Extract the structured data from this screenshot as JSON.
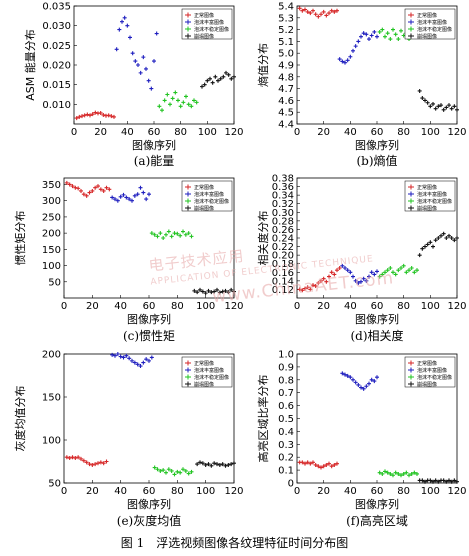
{
  "figure_title": "图 1　浮选视频图像各纹理特征时间分布图",
  "watermark": {
    "line1": "电子技术应用",
    "line2": "APPLICATION OF ELECTRONIC TECHNIQUE",
    "line3": "www.ChinaAET.com"
  },
  "colors": {
    "normal": "#d62728",
    "foam_abundant": "#1f1fbf",
    "foam_unstable": "#22c422",
    "collapse": "#111111"
  },
  "chart_data": [
    {
      "type": "scatter",
      "caption": "(a)能量",
      "xlabel": "图像序列",
      "ylabel": "ASM 能量分布",
      "xlim": [
        0,
        120
      ],
      "ylim": [
        0.005,
        0.035
      ],
      "xticks": [
        0,
        20,
        40,
        60,
        80,
        100,
        120
      ],
      "yticks": [
        0.01,
        0.015,
        0.02,
        0.025,
        0.03,
        0.035
      ],
      "yticklabels": [
        "0.010",
        "0.015",
        "0.020",
        "0.025",
        "0.030",
        "0.035"
      ],
      "legend": [
        "正常图像",
        "泡沫丰富图像",
        "泡沫不稳定图像",
        "崩塌图像"
      ],
      "series": [
        {
          "x": [
            2,
            4,
            6,
            8,
            10,
            12,
            14,
            16,
            18,
            20,
            22,
            24,
            26,
            28,
            30
          ],
          "y": [
            0.0065,
            0.0068,
            0.007,
            0.0072,
            0.0074,
            0.0072,
            0.0075,
            0.0079,
            0.0077,
            0.0078,
            0.0073,
            0.0071,
            0.0072,
            0.007,
            0.0068
          ]
        },
        {
          "x": [
            32,
            34,
            36,
            38,
            40,
            42,
            44,
            46,
            48,
            50,
            52,
            54,
            56,
            58,
            60,
            62
          ],
          "y": [
            0.024,
            0.029,
            0.031,
            0.032,
            0.03,
            0.027,
            0.023,
            0.021,
            0.02,
            0.018,
            0.022,
            0.019,
            0.016,
            0.014,
            0.021,
            0.028
          ]
        },
        {
          "x": [
            64,
            66,
            68,
            70,
            72,
            74,
            76,
            78,
            80,
            82,
            84,
            86,
            88,
            90,
            92
          ],
          "y": [
            0.0095,
            0.0085,
            0.011,
            0.0125,
            0.01,
            0.0115,
            0.013,
            0.011,
            0.0095,
            0.0105,
            0.012,
            0.01,
            0.0095,
            0.011,
            0.0105
          ]
        },
        {
          "x": [
            96,
            98,
            100,
            102,
            104,
            106,
            108,
            110,
            112,
            114,
            116,
            118,
            120
          ],
          "y": [
            0.0145,
            0.015,
            0.016,
            0.0165,
            0.0155,
            0.017,
            0.016,
            0.0165,
            0.017,
            0.018,
            0.0175,
            0.0165,
            0.017
          ]
        }
      ]
    },
    {
      "type": "scatter",
      "caption": "(b)熵值",
      "xlabel": "图像序列",
      "ylabel": "熵值分布",
      "xlim": [
        0,
        120
      ],
      "ylim": [
        4.4,
        5.4
      ],
      "xticks": [
        0,
        20,
        40,
        60,
        80,
        100,
        120
      ],
      "yticks": [
        4.4,
        4.5,
        4.6,
        4.7,
        4.8,
        4.9,
        5.0,
        5.1,
        5.2,
        5.3,
        5.4
      ],
      "yticklabels": [
        "4.4",
        "4.5",
        "4.6",
        "4.7",
        "4.8",
        "4.9",
        "5.0",
        "5.1",
        "5.2",
        "5.3",
        "5.4"
      ],
      "legend": [
        "正常图像",
        "泡沫丰富图像",
        "泡沫不稳定图像",
        "崩塌图像"
      ],
      "series": [
        {
          "x": [
            2,
            4,
            6,
            8,
            10,
            12,
            14,
            16,
            18,
            20,
            22,
            24,
            26,
            28,
            30
          ],
          "y": [
            5.38,
            5.36,
            5.37,
            5.35,
            5.34,
            5.36,
            5.33,
            5.31,
            5.33,
            5.35,
            5.32,
            5.34,
            5.36,
            5.35,
            5.36
          ]
        },
        {
          "x": [
            32,
            34,
            36,
            38,
            40,
            42,
            44,
            46,
            48,
            50,
            52,
            54,
            56,
            58,
            60
          ],
          "y": [
            4.95,
            4.93,
            4.92,
            4.94,
            4.97,
            5.02,
            5.06,
            5.1,
            5.14,
            5.17,
            5.16,
            5.12,
            5.15,
            5.18,
            5.14
          ]
        },
        {
          "x": [
            62,
            64,
            66,
            68,
            70,
            72,
            74,
            76,
            78,
            80,
            82,
            84,
            86,
            88,
            90
          ],
          "y": [
            5.18,
            5.2,
            5.14,
            5.17,
            5.12,
            5.2,
            5.16,
            5.12,
            5.19,
            5.15,
            5.17,
            5.12,
            5.18,
            5.21,
            5.16
          ]
        },
        {
          "x": [
            92,
            94,
            96,
            98,
            100,
            102,
            104,
            106,
            108,
            110,
            112,
            114,
            116,
            118,
            120
          ],
          "y": [
            4.68,
            4.62,
            4.6,
            4.58,
            4.55,
            4.57,
            4.53,
            4.55,
            4.56,
            4.52,
            4.54,
            4.56,
            4.53,
            4.55,
            4.52
          ]
        }
      ]
    },
    {
      "type": "scatter",
      "caption": "(c)惯性矩",
      "xlabel": "图像序列",
      "ylabel": "惯性矩分布",
      "xlim": [
        0,
        120
      ],
      "ylim": [
        0,
        370
      ],
      "xticks": [
        0,
        20,
        40,
        60,
        80,
        100,
        120
      ],
      "yticks": [
        50,
        100,
        150,
        200,
        250,
        300,
        350
      ],
      "yticklabels": [
        "50",
        "100",
        "150",
        "200",
        "250",
        "300",
        "350"
      ],
      "legend": [
        "正常图像",
        "泡沫丰富图像",
        "泡沫不稳定图像",
        "崩塌图像"
      ],
      "series": [
        {
          "x": [
            2,
            4,
            6,
            8,
            10,
            12,
            14,
            16,
            18,
            20,
            22,
            24,
            26,
            28,
            30,
            32
          ],
          "y": [
            355,
            350,
            345,
            340,
            338,
            330,
            320,
            315,
            325,
            330,
            340,
            345,
            335,
            330,
            340,
            335
          ]
        },
        {
          "x": [
            34,
            36,
            38,
            40,
            42,
            44,
            46,
            48,
            50,
            52,
            54,
            56,
            58,
            60
          ],
          "y": [
            310,
            305,
            300,
            312,
            318,
            310,
            305,
            300,
            315,
            320,
            340,
            325,
            305,
            320
          ]
        },
        {
          "x": [
            62,
            64,
            66,
            68,
            70,
            72,
            74,
            76,
            78,
            80,
            82,
            84,
            86,
            88,
            90
          ],
          "y": [
            200,
            195,
            190,
            200,
            185,
            195,
            205,
            190,
            200,
            198,
            192,
            205,
            195,
            200,
            190
          ]
        },
        {
          "x": [
            92,
            94,
            96,
            98,
            100,
            102,
            104,
            106,
            108,
            110,
            112,
            114,
            116,
            118,
            120
          ],
          "y": [
            22,
            18,
            25,
            20,
            15,
            22,
            18,
            20,
            25,
            17,
            20,
            22,
            18,
            25,
            20
          ]
        }
      ]
    },
    {
      "type": "scatter",
      "caption": "(d)相关度",
      "xlabel": "图像序列",
      "ylabel": "相关度分布",
      "xlim": [
        0,
        120
      ],
      "ylim": [
        0.1,
        0.38
      ],
      "xticks": [
        0,
        20,
        40,
        60,
        80,
        100,
        120
      ],
      "yticks": [
        0.12,
        0.14,
        0.16,
        0.18,
        0.2,
        0.22,
        0.24,
        0.26,
        0.28,
        0.3,
        0.32,
        0.34,
        0.36,
        0.38
      ],
      "yticklabels": [
        "0.12",
        "0.14",
        "0.16",
        "0.18",
        "0.20",
        "0.22",
        "0.24",
        "0.26",
        "0.28",
        "0.30",
        "0.32",
        "0.34",
        "0.36",
        "0.38"
      ],
      "legend": [
        "正常图像",
        "泡沫丰富图像",
        "泡沫不稳定图像",
        "崩塌图像"
      ],
      "series": [
        {
          "x": [
            2,
            4,
            6,
            8,
            10,
            12,
            14,
            16,
            18,
            20,
            22,
            24,
            26,
            28,
            30,
            32
          ],
          "y": [
            0.12,
            0.118,
            0.122,
            0.125,
            0.12,
            0.13,
            0.128,
            0.135,
            0.14,
            0.145,
            0.138,
            0.15,
            0.16,
            0.155,
            0.165,
            0.17
          ]
        },
        {
          "x": [
            34,
            36,
            38,
            40,
            42,
            44,
            46,
            48,
            50,
            52,
            54,
            56,
            58,
            60
          ],
          "y": [
            0.175,
            0.17,
            0.165,
            0.16,
            0.15,
            0.14,
            0.135,
            0.138,
            0.145,
            0.14,
            0.15,
            0.16,
            0.155,
            0.162
          ]
        },
        {
          "x": [
            62,
            64,
            66,
            68,
            70,
            72,
            74,
            76,
            78,
            80,
            82,
            84,
            86,
            88,
            90
          ],
          "y": [
            0.15,
            0.155,
            0.16,
            0.165,
            0.17,
            0.16,
            0.155,
            0.165,
            0.17,
            0.175,
            0.16,
            0.165,
            0.17,
            0.16,
            0.165
          ]
        },
        {
          "x": [
            92,
            94,
            96,
            98,
            100,
            102,
            104,
            106,
            108,
            110,
            112,
            114,
            116,
            118,
            120
          ],
          "y": [
            0.2,
            0.215,
            0.22,
            0.225,
            0.23,
            0.22,
            0.235,
            0.24,
            0.245,
            0.25,
            0.24,
            0.245,
            0.24,
            0.235,
            0.24
          ]
        }
      ]
    },
    {
      "type": "scatter",
      "caption": "(e)灰度均值",
      "xlabel": "图像序列",
      "ylabel": "灰度均值分布",
      "xlim": [
        0,
        120
      ],
      "ylim": [
        50,
        200
      ],
      "xticks": [
        0,
        20,
        40,
        60,
        80,
        100,
        120
      ],
      "yticks": [
        50,
        100,
        150,
        200
      ],
      "yticklabels": [
        "50",
        "100",
        "150",
        "200"
      ],
      "legend": [
        "正常图像",
        "泡沫丰富图像",
        "泡沫不稳定图像",
        "崩塌图像"
      ],
      "series": [
        {
          "x": [
            2,
            4,
            6,
            8,
            10,
            12,
            14,
            16,
            18,
            20,
            22,
            24,
            26,
            28,
            30
          ],
          "y": [
            80,
            79,
            80,
            79,
            80,
            78,
            76,
            74,
            72,
            71,
            72,
            73,
            74,
            73,
            75
          ]
        },
        {
          "x": [
            34,
            36,
            38,
            40,
            42,
            44,
            46,
            48,
            50,
            52,
            54,
            56,
            58,
            60,
            62
          ],
          "y": [
            199,
            198,
            200,
            197,
            196,
            198,
            195,
            192,
            190,
            188,
            186,
            190,
            194,
            192,
            196
          ]
        },
        {
          "x": [
            64,
            66,
            68,
            70,
            72,
            74,
            76,
            78,
            80,
            82,
            84,
            86,
            88,
            90
          ],
          "y": [
            68,
            66,
            64,
            65,
            62,
            66,
            64,
            60,
            63,
            62,
            66,
            64,
            61,
            63
          ]
        },
        {
          "x": [
            94,
            96,
            98,
            100,
            102,
            104,
            106,
            108,
            110,
            112,
            114,
            116,
            118,
            120
          ],
          "y": [
            72,
            74,
            73,
            71,
            72,
            70,
            73,
            72,
            71,
            72,
            70,
            71,
            72,
            73
          ]
        }
      ]
    },
    {
      "type": "scatter",
      "caption": "(f)高亮区域",
      "xlabel": "图像序列",
      "ylabel": "高亮区域比率分布",
      "xlim": [
        0,
        120
      ],
      "ylim": [
        0,
        1
      ],
      "xticks": [
        0,
        20,
        40,
        60,
        80,
        100,
        120
      ],
      "yticks": [
        0,
        0.1,
        0.2,
        0.3,
        0.4,
        0.5,
        0.6,
        0.7,
        0.8,
        0.9,
        1
      ],
      "yticklabels": [
        "0",
        "0.1",
        "0.2",
        "0.3",
        "0.4",
        "0.5",
        "0.6",
        "0.7",
        "0.8",
        "0.9",
        "1.0"
      ],
      "legend": [
        "正常图像",
        "泡沫丰富图像",
        "泡沫不稳定图像",
        "崩塌图像"
      ],
      "series": [
        {
          "x": [
            2,
            4,
            6,
            8,
            10,
            12,
            14,
            16,
            18,
            20,
            22,
            24,
            26,
            28,
            30
          ],
          "y": [
            0.16,
            0.16,
            0.15,
            0.16,
            0.15,
            0.16,
            0.14,
            0.13,
            0.12,
            0.13,
            0.14,
            0.15,
            0.13,
            0.14,
            0.15
          ]
        },
        {
          "x": [
            34,
            36,
            38,
            40,
            42,
            44,
            46,
            48,
            50,
            52,
            54,
            56,
            58,
            60
          ],
          "y": [
            0.85,
            0.84,
            0.83,
            0.82,
            0.8,
            0.78,
            0.76,
            0.74,
            0.73,
            0.75,
            0.77,
            0.8,
            0.79,
            0.82
          ]
        },
        {
          "x": [
            62,
            64,
            66,
            68,
            70,
            72,
            74,
            76,
            78,
            80,
            82,
            84,
            86,
            88,
            90
          ],
          "y": [
            0.08,
            0.07,
            0.09,
            0.08,
            0.07,
            0.06,
            0.08,
            0.07,
            0.06,
            0.07,
            0.08,
            0.06,
            0.07,
            0.08,
            0.07
          ]
        },
        {
          "x": [
            92,
            94,
            96,
            98,
            100,
            102,
            104,
            106,
            108,
            110,
            112,
            114,
            116,
            118,
            120
          ],
          "y": [
            0.02,
            0.02,
            0.01,
            0.02,
            0.02,
            0.01,
            0.02,
            0.01,
            0.02,
            0.02,
            0.01,
            0.02,
            0.01,
            0.02,
            0.01
          ]
        }
      ]
    }
  ]
}
